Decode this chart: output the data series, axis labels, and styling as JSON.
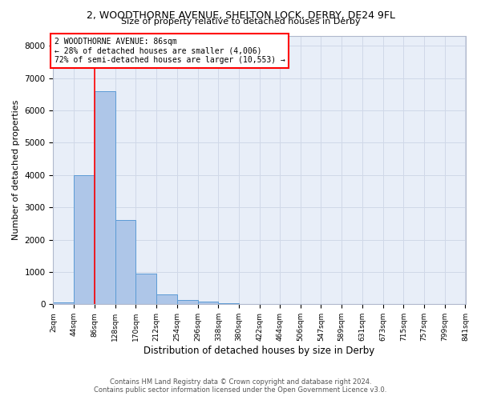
{
  "title": "2, WOODTHORNE AVENUE, SHELTON LOCK, DERBY, DE24 9FL",
  "subtitle": "Size of property relative to detached houses in Derby",
  "xlabel": "Distribution of detached houses by size in Derby",
  "ylabel": "Number of detached properties",
  "footer_line1": "Contains HM Land Registry data © Crown copyright and database right 2024.",
  "footer_line2": "Contains public sector information licensed under the Open Government Licence v3.0.",
  "bin_edges": [
    2,
    44,
    86,
    128,
    170,
    212,
    254,
    296,
    338,
    380,
    422,
    464,
    506,
    547,
    589,
    631,
    673,
    715,
    757,
    799,
    841
  ],
  "bar_heights": [
    50,
    4000,
    6600,
    2600,
    950,
    310,
    140,
    80,
    40,
    20,
    10,
    5,
    3,
    2,
    1,
    1,
    1,
    1,
    1,
    1
  ],
  "bar_color": "#aec6e8",
  "bar_edge_color": "#5b9bd5",
  "grid_color": "#d0d8e8",
  "bg_color": "#e8eef8",
  "property_size": 86,
  "vline_color": "red",
  "annotation_text": "2 WOODTHORNE AVENUE: 86sqm\n← 28% of detached houses are smaller (4,006)\n72% of semi-detached houses are larger (10,553) →",
  "annotation_box_color": "white",
  "annotation_border_color": "red",
  "ylim": [
    0,
    8300
  ],
  "yticks": [
    0,
    1000,
    2000,
    3000,
    4000,
    5000,
    6000,
    7000,
    8000
  ],
  "tick_labels": [
    "2sqm",
    "44sqm",
    "86sqm",
    "128sqm",
    "170sqm",
    "212sqm",
    "254sqm",
    "296sqm",
    "338sqm",
    "380sqm",
    "422sqm",
    "464sqm",
    "506sqm",
    "547sqm",
    "589sqm",
    "631sqm",
    "673sqm",
    "715sqm",
    "757sqm",
    "799sqm",
    "841sqm"
  ]
}
